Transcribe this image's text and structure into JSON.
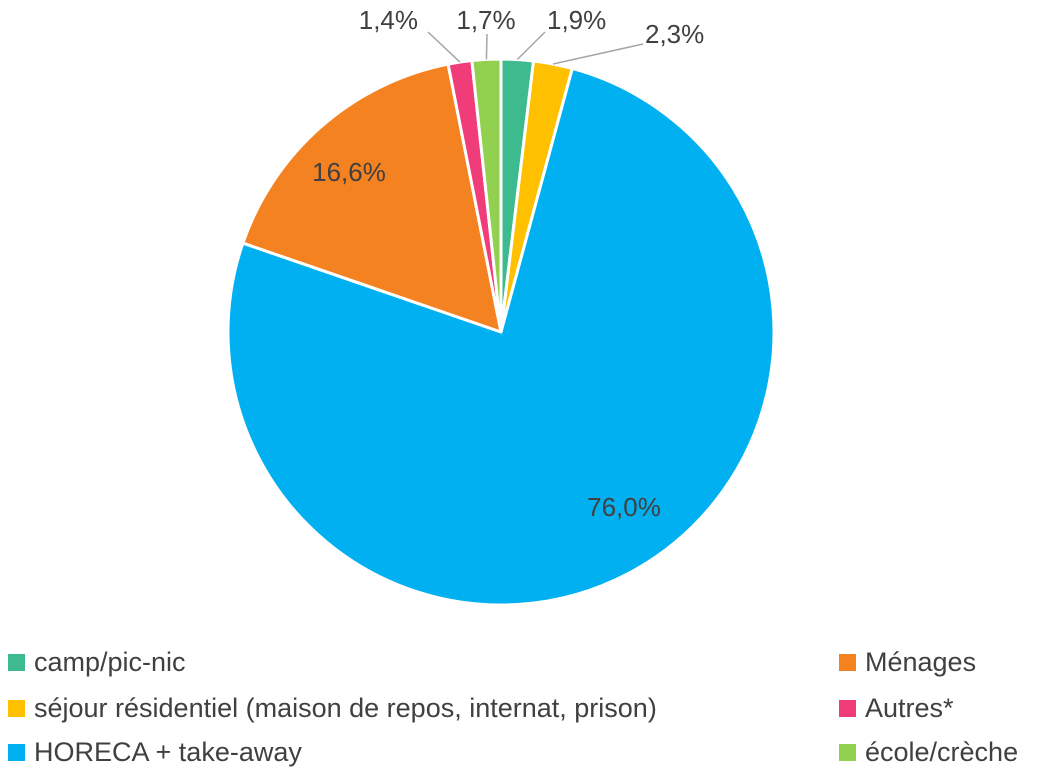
{
  "chart_data": {
    "type": "pie",
    "title": "",
    "series": [
      {
        "categories": [
          "camp/pic-nic",
          "séjour résidentiel (maison de repos, internat, prison)",
          "HORECA + take-away",
          "Ménages",
          "Autres*",
          "école/crèche"
        ],
        "values": [
          1.9,
          2.3,
          76.0,
          16.6,
          1.4,
          1.7
        ],
        "labels": [
          "1,9%",
          "2,3%",
          "76,0%",
          "16,6%",
          "1,4%",
          "1,7%"
        ],
        "colors": [
          "#3dbb8f",
          "#ffc000",
          "#00b0f0",
          "#f58220",
          "#f03c78",
          "#92d050"
        ]
      }
    ],
    "legend_position": "bottom",
    "legend": [
      {
        "label": "camp/pic-nic",
        "color": "#3dbb8f"
      },
      {
        "label": "Ménages",
        "color": "#f58220"
      },
      {
        "label": "séjour résidentiel (maison de repos, internat, prison)",
        "color": "#ffc000"
      },
      {
        "label": "Autres*",
        "color": "#f03c78"
      },
      {
        "label": "HORECA + take-away",
        "color": "#00b0f0"
      },
      {
        "label": "école/crèche",
        "color": "#92d050"
      }
    ]
  }
}
